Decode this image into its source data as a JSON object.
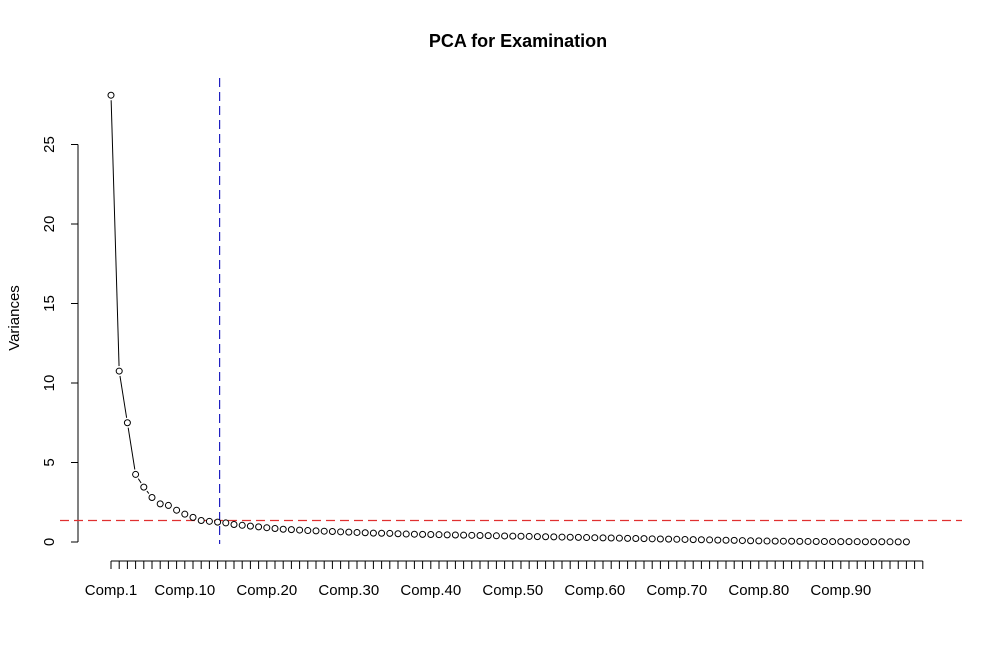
{
  "chart_data": {
    "type": "line",
    "title": "PCA for Examination",
    "xlabel": "",
    "ylabel": "Variances",
    "ylim": [
      0,
      28.5
    ],
    "y_ticks": [
      0,
      5,
      10,
      15,
      20,
      25
    ],
    "x_tick_labels": [
      "Comp.1",
      "Comp.10",
      "Comp.20",
      "Comp.30",
      "Comp.40",
      "Comp.50",
      "Comp.60",
      "Comp.70",
      "Comp.80",
      "Comp.90"
    ],
    "x_tick_label_indices": [
      1,
      10,
      20,
      30,
      40,
      50,
      60,
      70,
      80,
      90
    ],
    "n_components": 98,
    "n_ticks": 100,
    "grid": false,
    "series": [
      {
        "values": [
          28.1,
          10.75,
          7.5,
          4.25,
          3.45,
          2.8,
          2.4,
          2.3,
          2.0,
          1.75,
          1.55,
          1.35,
          1.3,
          1.25,
          1.2,
          1.1,
          1.05,
          1.0,
          0.95,
          0.9,
          0.85,
          0.8,
          0.78,
          0.75,
          0.72,
          0.7,
          0.68,
          0.66,
          0.64,
          0.62,
          0.6,
          0.58,
          0.56,
          0.55,
          0.54,
          0.52,
          0.5,
          0.49,
          0.48,
          0.47,
          0.46,
          0.45,
          0.44,
          0.43,
          0.42,
          0.41,
          0.4,
          0.39,
          0.38,
          0.37,
          0.36,
          0.35,
          0.34,
          0.33,
          0.32,
          0.31,
          0.3,
          0.29,
          0.28,
          0.27,
          0.26,
          0.25,
          0.24,
          0.23,
          0.22,
          0.21,
          0.2,
          0.19,
          0.18,
          0.17,
          0.16,
          0.15,
          0.14,
          0.13,
          0.12,
          0.11,
          0.1,
          0.09,
          0.08,
          0.07,
          0.06,
          0.055,
          0.05,
          0.045,
          0.04,
          0.035,
          0.03,
          0.028,
          0.026,
          0.024,
          0.022,
          0.02,
          0.018,
          0.016,
          0.014,
          0.012,
          0.01,
          0.008
        ]
      }
    ],
    "reference_lines": [
      {
        "orientation": "horizontal",
        "value": 1.35,
        "color": "#e03030",
        "style": "dashed"
      },
      {
        "orientation": "vertical",
        "component": 14,
        "color": "#2020c0",
        "style": "dashed"
      }
    ]
  }
}
